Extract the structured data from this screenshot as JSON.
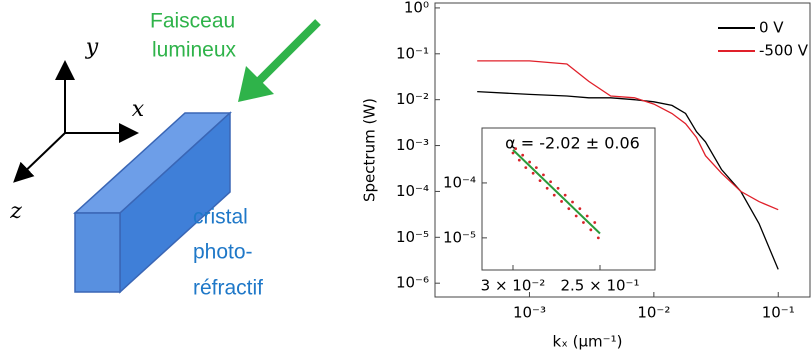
{
  "diagram": {
    "axis_y": "y",
    "axis_x": "x",
    "axis_z": "z",
    "beam_label": [
      "Faisceau",
      "lumineux"
    ],
    "crystal_label": [
      "cristal",
      "photo-",
      "réfractif"
    ]
  },
  "chart_data": [
    {
      "type": "line",
      "xlabel": "kₓ (μm⁻¹)",
      "ylabel": "Spectrum (W)",
      "log_x": true,
      "log_y": true,
      "grid": false,
      "legend": "upper right",
      "x": [
        0.00038,
        0.001,
        0.002,
        0.003,
        0.0045,
        0.007,
        0.01,
        0.014,
        0.018,
        0.022,
        0.026,
        0.035,
        0.05,
        0.07,
        0.1
      ],
      "series": [
        {
          "name": "0 V",
          "color": "#000000",
          "values": [
            0.015,
            0.013,
            0.012,
            0.011,
            0.011,
            0.01,
            0.009,
            0.0075,
            0.005,
            0.002,
            0.0012,
            0.0003,
            0.0001,
            2e-05,
            2e-06
          ]
        },
        {
          "name": "-500 V",
          "color": "#e0202a",
          "values": [
            0.07,
            0.07,
            0.06,
            0.025,
            0.012,
            0.011,
            0.008,
            0.005,
            0.003,
            0.0015,
            0.0006,
            0.00025,
            0.0001,
            6e-05,
            4e-05
          ]
        }
      ],
      "xlim": [
        0.000174,
        0.18
      ],
      "ylim": [
        5e-07,
        1.28
      ],
      "xticks": [
        {
          "value": 0.001,
          "label": "10⁻³"
        },
        {
          "value": 0.01,
          "label": "10⁻²"
        },
        {
          "value": 0.1,
          "label": "10⁻¹"
        }
      ],
      "yticks": [
        {
          "value": 1,
          "label": "10⁰"
        },
        {
          "value": 0.1,
          "label": "10⁻¹"
        },
        {
          "value": 0.01,
          "label": "10⁻²"
        },
        {
          "value": 0.001,
          "label": "10⁻³"
        },
        {
          "value": 0.0001,
          "label": "10⁻⁴"
        },
        {
          "value": 1e-05,
          "label": "10⁻⁵"
        },
        {
          "value": 1e-06,
          "label": "10⁻⁶"
        }
      ]
    },
    {
      "type": "scatter",
      "annotation": "α = -2.02 ± 0.06",
      "log_x": true,
      "log_y": true,
      "x": [
        0.03,
        0.032,
        0.035,
        0.038,
        0.041,
        0.045,
        0.049,
        0.053,
        0.058,
        0.063,
        0.069,
        0.075,
        0.082,
        0.09,
        0.098,
        0.107,
        0.117,
        0.128,
        0.14,
        0.153,
        0.167,
        0.183,
        0.2,
        0.22,
        0.24
      ],
      "series": [
        {
          "color": "#d8232a",
          "values": [
            0.00035,
            0.00042,
            0.00026,
            0.00032,
            0.00019,
            0.00024,
            0.00015,
            0.00019,
            0.00011,
            0.00014,
            8e-05,
            0.000105,
            6e-05,
            8e-05,
            4.6e-05,
            6e-05,
            3.4e-05,
            4.5e-05,
            2.5e-05,
            3.4e-05,
            1.9e-05,
            2.5e-05,
            1.4e-05,
            1.9e-05,
            1e-05
          ]
        }
      ],
      "fit": {
        "color": "#2a9a3a",
        "x": [
          0.03,
          0.25
        ],
        "values": [
          0.0004,
          1.2e-05
        ]
      },
      "xlim": [
        0.0141,
        0.955
      ],
      "ylim": [
        2.6e-06,
        0.001
      ],
      "xticks": [
        {
          "value": 0.03,
          "label": "3 × 10⁻²"
        },
        {
          "value": 0.25,
          "label": "2.5 × 10⁻¹"
        }
      ],
      "yticks": [
        {
          "value": 0.0001,
          "label": "10⁻⁴"
        },
        {
          "value": 1e-05,
          "label": "10⁻⁵"
        }
      ]
    }
  ]
}
